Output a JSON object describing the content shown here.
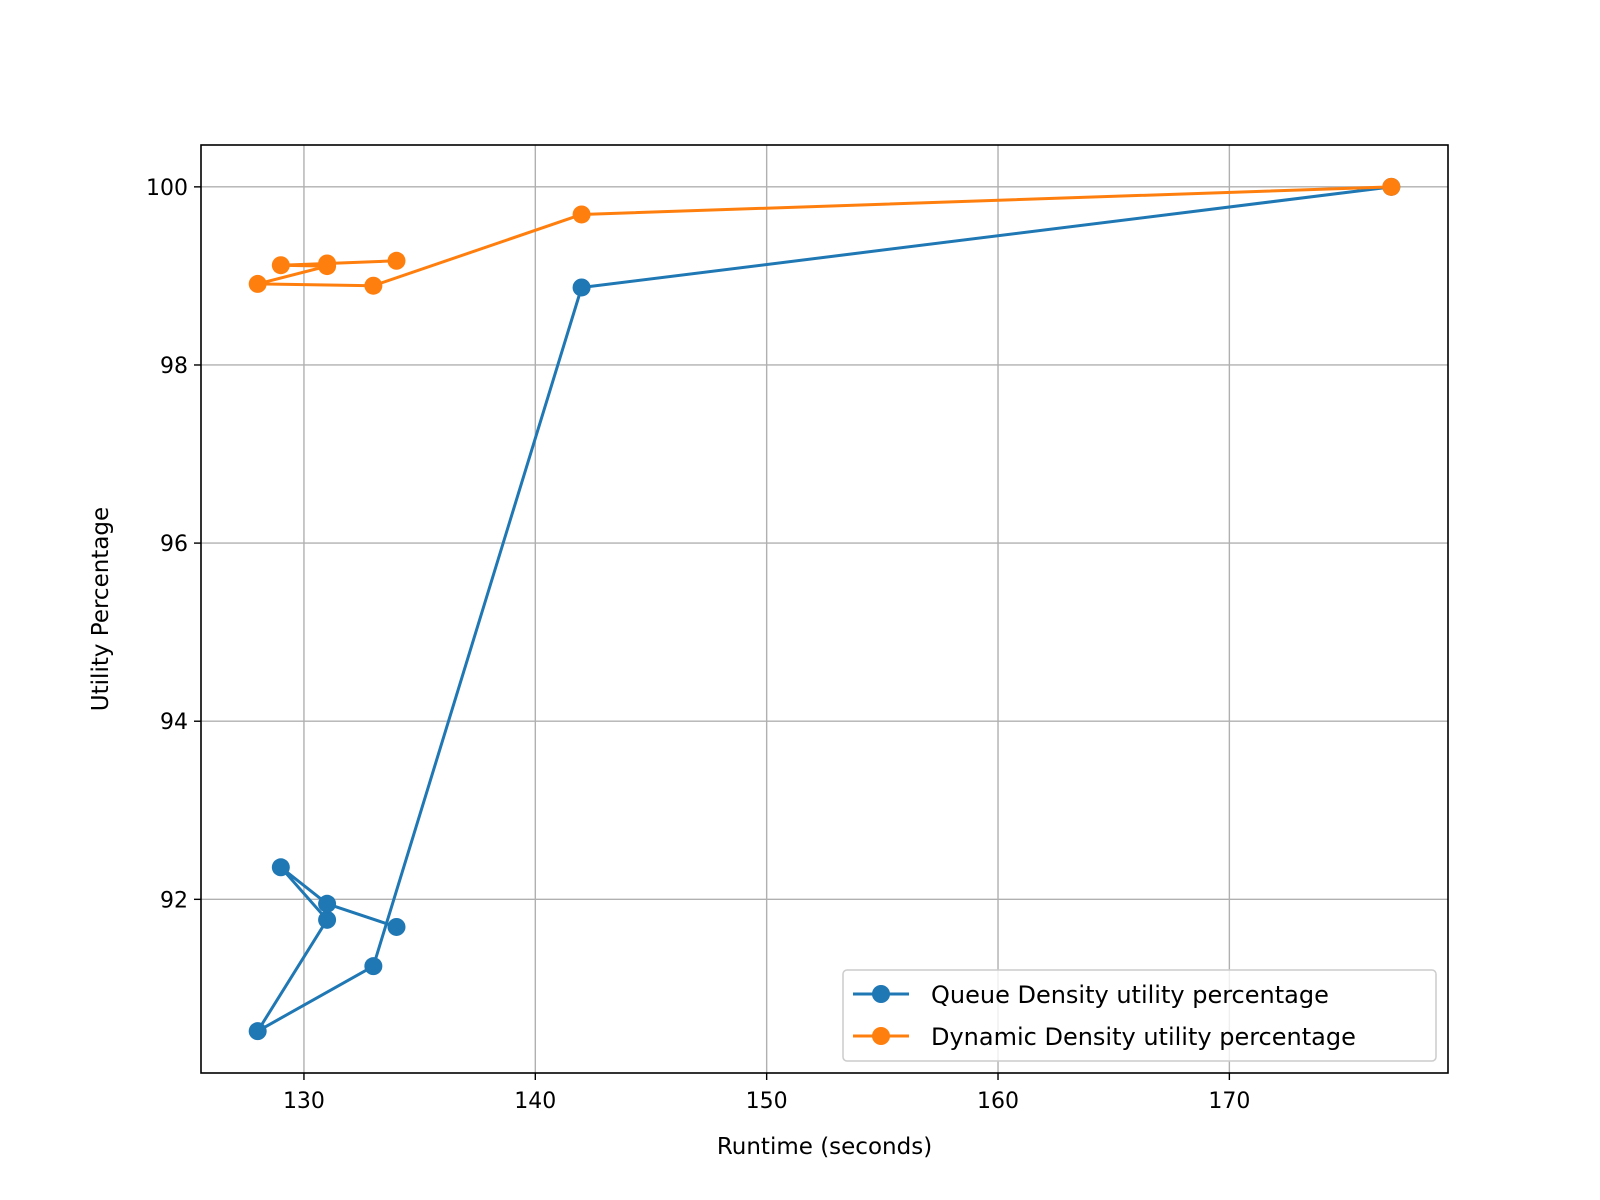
{
  "chart_data": {
    "type": "line",
    "title": "",
    "xlabel": "Runtime (seconds)",
    "ylabel": "Utility Percentage",
    "xlim": [
      125.55,
      179.45
    ],
    "ylim": [
      90.05,
      100.47
    ],
    "xticks": [
      130,
      140,
      150,
      160,
      170
    ],
    "yticks": [
      92,
      94,
      96,
      98,
      100
    ],
    "grid": true,
    "legend_position": "lower-right",
    "series": [
      {
        "name": "Queue Density utility percentage",
        "color": "#1f77b4",
        "marker": "circle",
        "points": [
          {
            "x": 177,
            "y": 100.0
          },
          {
            "x": 142,
            "y": 98.87
          },
          {
            "x": 133,
            "y": 91.25
          },
          {
            "x": 128,
            "y": 90.52
          },
          {
            "x": 131,
            "y": 91.77
          },
          {
            "x": 129,
            "y": 92.36
          },
          {
            "x": 131,
            "y": 91.95
          },
          {
            "x": 134,
            "y": 91.69
          }
        ]
      },
      {
        "name": "Dynamic Density utility percentage",
        "color": "#ff7f0e",
        "marker": "circle",
        "points": [
          {
            "x": 177,
            "y": 100.0
          },
          {
            "x": 142,
            "y": 99.69
          },
          {
            "x": 133,
            "y": 98.89
          },
          {
            "x": 128,
            "y": 98.91
          },
          {
            "x": 131,
            "y": 99.11
          },
          {
            "x": 129,
            "y": 99.12
          },
          {
            "x": 131,
            "y": 99.14
          },
          {
            "x": 134,
            "y": 99.17
          }
        ]
      }
    ]
  }
}
